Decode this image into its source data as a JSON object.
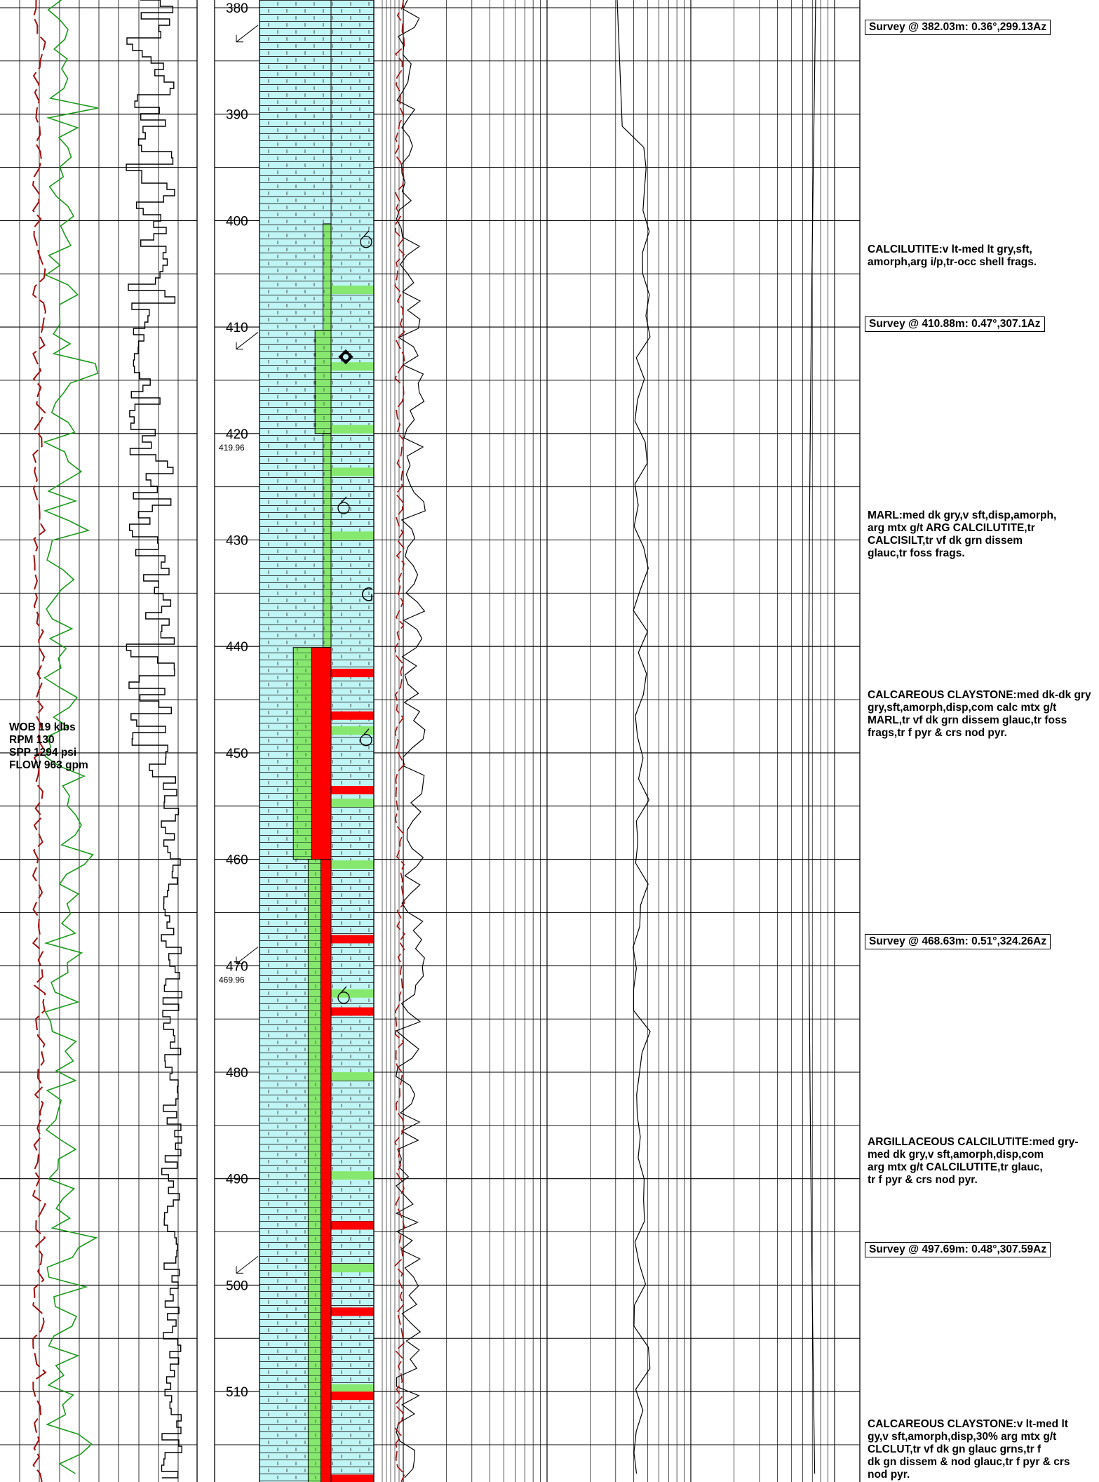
{
  "depth_track": {
    "labels": [
      "380",
      "390",
      "400",
      "410",
      "420",
      "430",
      "440",
      "450",
      "460",
      "470",
      "480",
      "490",
      "500",
      "510"
    ],
    "sub_labels": [
      {
        "depth": 419.96,
        "text": "419.96"
      },
      {
        "depth": 469.96,
        "text": "469.96"
      }
    ]
  },
  "drilling_parameters": {
    "wob": "WOB 19 klbs",
    "rpm": "RPM 130",
    "spp": "SPP 1294 psi",
    "flow": "FLOW 963 gpm"
  },
  "surveys": [
    {
      "text": "Survey @ 382.03m: 0.36°,299.13Az"
    },
    {
      "text": "Survey @ 410.88m: 0.47°,307.1Az"
    },
    {
      "text": "Survey @ 468.63m: 0.51°,324.26Az"
    },
    {
      "text": "Survey @ 497.69m: 0.48°,307.59Az"
    }
  ],
  "descriptions": [
    {
      "text": "CALCILUTITE:v lt-med lt gry,sft,\namorph,arg i/p,tr-occ shell frags."
    },
    {
      "text": "MARL:med dk gry,v sft,disp,amorph,\narg mtx g/t ARG CALCILUTITE,tr\nCALCISILT,tr vf dk grn dissem\nglauc,tr foss frags."
    },
    {
      "text": "CALCAREOUS CLAYSTONE:med dk-dk gry\ngry,sft,amorph,disp,com calc mtx g/t\nMARL,tr vf dk grn dissem glauc,tr foss\nfrags,tr f pyr & crs nod pyr."
    },
    {
      "text": "ARGILLACEOUS CALCILUTITE:med gry-\nmed dk gry,v sft,amorph,disp,com\narg mtx g/t CALCILUTITE,tr glauc,\ntr f pyr & crs nod pyr."
    },
    {
      "text": "CALCAREOUS CLAYSTONE:v lt-med lt\ngy,v sft,amorph,disp,30% arg mtx g/t\nCLCLUT,tr vf dk gn glauc grns,tr f\ndk gn dissem & nod glauc,tr f pyr & crs\nnod pyr."
    }
  ],
  "lithology": {
    "colors": {
      "limestone": "#bff5f5",
      "marl": "#86e86e",
      "claystone": "#ff0000",
      "grid": "#000000"
    },
    "marl_fraction_intervals": [
      {
        "top": 400.3,
        "bottom": 410.3,
        "fraction": 0.07
      },
      {
        "top": 410.3,
        "bottom": 420.0,
        "fraction": 0.14
      },
      {
        "top": 420.0,
        "bottom": 440.1,
        "fraction": 0.07
      },
      {
        "top": 440.1,
        "bottom": 460.0,
        "fraction": 0.33
      },
      {
        "top": 460.0,
        "bottom": 520.0,
        "fraction": 0.2
      }
    ],
    "claystone_fraction_intervals": [
      {
        "top": 440.1,
        "bottom": 460.0,
        "fraction": 0.17
      },
      {
        "top": 460.0,
        "bottom": 520.0,
        "fraction": 0.09
      }
    ],
    "interpreted_bands": [
      {
        "depth": 406.5,
        "type": "marl"
      },
      {
        "depth": 413.7,
        "type": "marl"
      },
      {
        "depth": 419.6,
        "type": "marl"
      },
      {
        "depth": 423.6,
        "type": "marl"
      },
      {
        "depth": 429.6,
        "type": "marl"
      },
      {
        "depth": 442.5,
        "type": "claystone"
      },
      {
        "depth": 446.5,
        "type": "claystone"
      },
      {
        "depth": 447.9,
        "type": "marl"
      },
      {
        "depth": 453.5,
        "type": "claystone"
      },
      {
        "depth": 454.7,
        "type": "marl"
      },
      {
        "depth": 460.5,
        "type": "marl"
      },
      {
        "depth": 467.5,
        "type": "claystone"
      },
      {
        "depth": 472.6,
        "type": "marl"
      },
      {
        "depth": 474.3,
        "type": "claystone"
      },
      {
        "depth": 480.4,
        "type": "marl"
      },
      {
        "depth": 489.7,
        "type": "marl"
      },
      {
        "depth": 494.4,
        "type": "claystone"
      },
      {
        "depth": 498.4,
        "type": "marl"
      },
      {
        "depth": 502.5,
        "type": "claystone"
      },
      {
        "depth": 509.7,
        "type": "marl"
      },
      {
        "depth": 510.4,
        "type": "claystone"
      },
      {
        "depth": 518.2,
        "type": "claystone"
      }
    ],
    "fossil_symbols": [
      402.0,
      427.0,
      448.8,
      473.0
    ],
    "mineral_symbols": [
      {
        "depth": 412.8,
        "type": "pyrite"
      },
      {
        "depth": 435.1,
        "type": "glauconite"
      }
    ]
  },
  "survey_arrows": [
    382.03,
    410.88,
    468.63,
    497.69
  ]
}
